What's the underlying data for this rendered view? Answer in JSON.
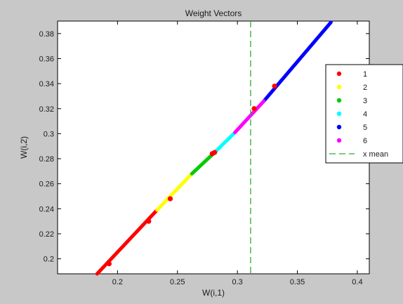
{
  "chart_data": {
    "type": "scatter",
    "title": "Weight Vectors",
    "xlabel": "W(i,1)",
    "ylabel": "W(i,2)",
    "xlim": [
      0.15,
      0.41
    ],
    "ylim": [
      0.188,
      0.39
    ],
    "xticks": [
      0.2,
      0.25,
      0.3,
      0.35,
      0.4
    ],
    "xtick_labels": [
      "0.2",
      "0.25",
      "0.3",
      "0.35",
      "0.4"
    ],
    "yticks": [
      0.2,
      0.22,
      0.24,
      0.26,
      0.28,
      0.3,
      0.32,
      0.34,
      0.36,
      0.38
    ],
    "ytick_labels": [
      "0.2",
      "0.22",
      "0.24",
      "0.26",
      "0.28",
      "0.3",
      "0.32",
      "0.34",
      "0.36",
      "0.38"
    ],
    "grid": false,
    "legend_position": "right",
    "series": [
      {
        "name": "1",
        "color": "#ff0000",
        "x_range": [
          0.183,
          0.233
        ],
        "y_range": [
          0.188,
          0.239
        ]
      },
      {
        "name": "2",
        "color": "#ffff00",
        "x_range": [
          0.233,
          0.262
        ],
        "y_range": [
          0.239,
          0.268
        ]
      },
      {
        "name": "3",
        "color": "#00cc00",
        "x_range": [
          0.262,
          0.281
        ],
        "y_range": [
          0.268,
          0.285
        ]
      },
      {
        "name": "4",
        "color": "#00ffff",
        "x_range": [
          0.281,
          0.298
        ],
        "y_range": [
          0.285,
          0.301
        ]
      },
      {
        "name": "5",
        "color": "#0000ff",
        "x_range": [
          0.322,
          0.378
        ],
        "y_range": [
          0.326,
          0.389
        ]
      },
      {
        "name": "6",
        "color": "#ff00ff",
        "x_range": [
          0.298,
          0.322
        ],
        "y_range": [
          0.301,
          0.326
        ]
      }
    ],
    "highlight_points": {
      "color": "#ff0000",
      "points": [
        {
          "x": 0.193,
          "y": 0.196
        },
        {
          "x": 0.226,
          "y": 0.23
        },
        {
          "x": 0.244,
          "y": 0.248
        },
        {
          "x": 0.279,
          "y": 0.284
        },
        {
          "x": 0.281,
          "y": 0.285
        },
        {
          "x": 0.314,
          "y": 0.32
        },
        {
          "x": 0.331,
          "y": 0.338
        }
      ]
    },
    "x_mean": {
      "name": "x mean",
      "value": 0.311,
      "color": "#33aa33"
    }
  }
}
